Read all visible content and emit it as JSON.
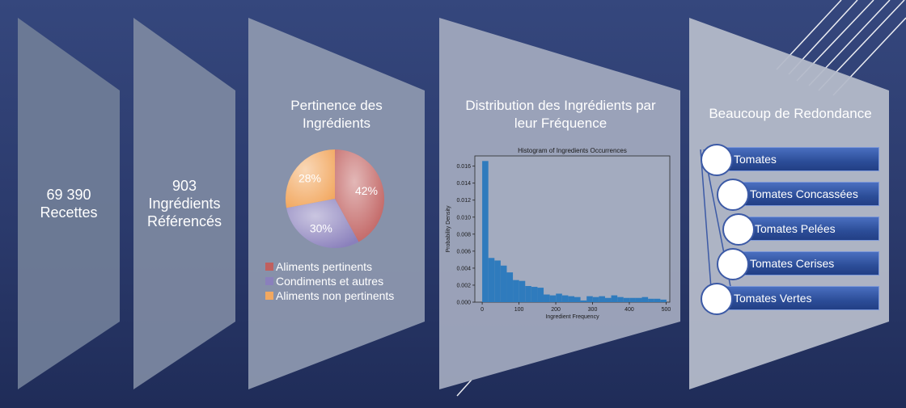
{
  "panels": {
    "recipes": {
      "line1": "69 390",
      "line2": "Recettes"
    },
    "ingredients": {
      "line1": "903",
      "line2": "Ingrédients",
      "line3": "Référencés"
    },
    "relevance": {
      "title_line1": "Pertinence des",
      "title_line2": "Ingrédients"
    },
    "distribution": {
      "title_line1": "Distribution des Ingrédients par",
      "title_line2": "leur Fréquence"
    },
    "redundancy": {
      "title": "Beaucoup de Redondance"
    }
  },
  "colors": {
    "pie_relevant": "#c0605f",
    "pie_condiments": "#8a80bc",
    "pie_nonrelevant": "#f2a860",
    "hist_bar": "#2f7bbd",
    "list_box": "#2e4f9a"
  },
  "chart_data": [
    {
      "type": "pie",
      "labels": [
        "Aliments pertinents",
        "Condiments et autres",
        "Aliments non pertinents"
      ],
      "values": [
        42,
        30,
        28
      ],
      "value_labels": [
        "42%",
        "30%",
        "28%"
      ],
      "legend": "bottom"
    },
    {
      "type": "bar",
      "title": "Histogram of Ingredients Occurrences",
      "xlabel": "Ingredient Frequency",
      "ylabel": "Probability Density",
      "xlim": [
        -20,
        510
      ],
      "ylim": [
        0,
        0.0172
      ],
      "xticks": [
        0,
        100,
        200,
        300,
        400,
        500
      ],
      "yticks": [
        "0.000",
        "0.002",
        "0.004",
        "0.006",
        "0.008",
        "0.010",
        "0.012",
        "0.014",
        "0.016"
      ],
      "bin_width": 16.7,
      "bin_starts": [
        0,
        16.7,
        33.4,
        50.1,
        66.8,
        83.5,
        100.2,
        116.9,
        133.6,
        150.3,
        167,
        183.7,
        200.4,
        217.1,
        233.8,
        250.5,
        267.2,
        283.9,
        300.6,
        317.3,
        334,
        350.7,
        367.4,
        384.1,
        400.8,
        417.5,
        434.2,
        450.9,
        467.6,
        484.3
      ],
      "values": [
        0.0166,
        0.0052,
        0.0049,
        0.0043,
        0.0035,
        0.0026,
        0.0025,
        0.0019,
        0.0018,
        0.0017,
        0.0009,
        0.0008,
        0.001,
        0.0008,
        0.0007,
        0.0006,
        0.0002,
        0.0007,
        0.0006,
        0.0007,
        0.0005,
        0.0008,
        0.0006,
        0.0005,
        0.0005,
        0.0005,
        0.0006,
        0.0004,
        0.0004,
        0.0003
      ]
    }
  ],
  "tomatoes": [
    "Tomates",
    "Tomates Concassées",
    "Tomates Pelées",
    "Tomates Cerises",
    "Tomates Vertes"
  ]
}
